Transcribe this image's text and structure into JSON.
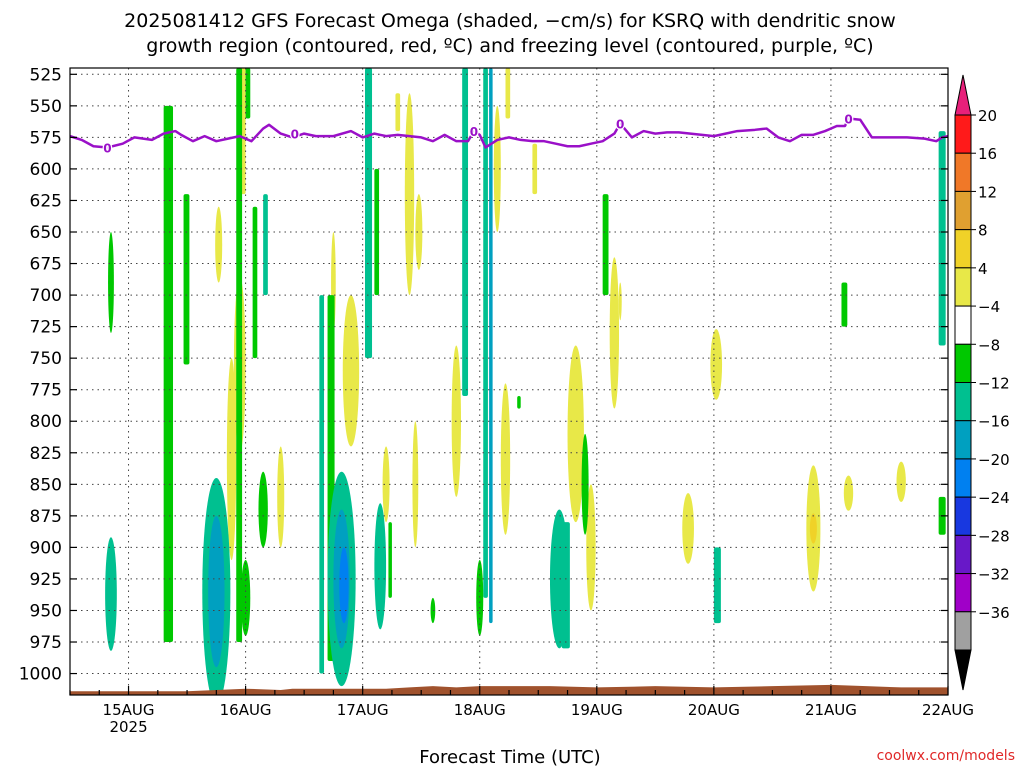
{
  "chart_data": {
    "type": "heatmap",
    "title_line1": "2025081412 GFS Forecast Omega (shaded, −cm/s) for KSRQ with dendritic snow",
    "title_line2": "growth region (contoured, red, ºC) and freezing level (contoured, purple, ºC)",
    "xlabel": "Forecast Time (UTC)",
    "ylabel": "",
    "watermark": "coolwx.com/models",
    "x_ticks": [
      {
        "day": 15,
        "label": "15AUG"
      },
      {
        "day": 16,
        "label": "16AUG"
      },
      {
        "day": 17,
        "label": "17AUG"
      },
      {
        "day": 18,
        "label": "18AUG"
      },
      {
        "day": 19,
        "label": "19AUG"
      },
      {
        "day": 20,
        "label": "20AUG"
      },
      {
        "day": 21,
        "label": "21AUG"
      },
      {
        "day": 22,
        "label": "22AUG"
      }
    ],
    "x_year_label": "2025",
    "xlim": [
      14.5,
      22.0
    ],
    "y_ticks": [
      525,
      550,
      575,
      600,
      625,
      650,
      675,
      700,
      725,
      750,
      775,
      800,
      825,
      850,
      875,
      900,
      925,
      950,
      975,
      1000
    ],
    "ylim": [
      520,
      1017
    ],
    "colorbar": {
      "labels": [
        "20",
        "16",
        "12",
        "8",
        "4",
        "−4",
        "−8",
        "−12",
        "−16",
        "−20",
        "−24",
        "−28",
        "−32",
        "−36"
      ],
      "colors": [
        "#ff1a1a",
        "#f07828",
        "#e0a030",
        "#f0d228",
        "#e8e848",
        "#ffffff",
        "#00c800",
        "#00c090",
        "#00a0c0",
        "#0080f0",
        "#1838e0",
        "#6818c8",
        "#a000c8",
        "#a0a0a0"
      ],
      "top_color": "#e8207a",
      "bottom_color": "#000000"
    },
    "freezing_level_label": "0",
    "freezing_level": [
      [
        14.5,
        574
      ],
      [
        14.6,
        577
      ],
      [
        14.7,
        582
      ],
      [
        14.82,
        583
      ],
      [
        14.95,
        580
      ],
      [
        15.05,
        575
      ],
      [
        15.2,
        577
      ],
      [
        15.3,
        572
      ],
      [
        15.4,
        570
      ],
      [
        15.45,
        573
      ],
      [
        15.55,
        578
      ],
      [
        15.65,
        574
      ],
      [
        15.75,
        578
      ],
      [
        15.85,
        576
      ],
      [
        15.95,
        574
      ],
      [
        16.05,
        578
      ],
      [
        16.15,
        568
      ],
      [
        16.2,
        565
      ],
      [
        16.3,
        572
      ],
      [
        16.4,
        575
      ],
      [
        16.5,
        572
      ],
      [
        16.6,
        574
      ],
      [
        16.75,
        574
      ],
      [
        16.9,
        570
      ],
      [
        17.0,
        575
      ],
      [
        17.1,
        572
      ],
      [
        17.2,
        574
      ],
      [
        17.3,
        573
      ],
      [
        17.5,
        575
      ],
      [
        17.6,
        578
      ],
      [
        17.7,
        573
      ],
      [
        17.8,
        578
      ],
      [
        17.9,
        578
      ],
      [
        17.95,
        570
      ],
      [
        18.0,
        573
      ],
      [
        18.05,
        583
      ],
      [
        18.15,
        577
      ],
      [
        18.25,
        575
      ],
      [
        18.35,
        577
      ],
      [
        18.45,
        578
      ],
      [
        18.55,
        578
      ],
      [
        18.65,
        580
      ],
      [
        18.75,
        582
      ],
      [
        18.85,
        582
      ],
      [
        18.95,
        580
      ],
      [
        19.05,
        578
      ],
      [
        19.15,
        572
      ],
      [
        19.2,
        564
      ],
      [
        19.3,
        575
      ],
      [
        19.4,
        570
      ],
      [
        19.5,
        572
      ],
      [
        19.6,
        571
      ],
      [
        19.7,
        571
      ],
      [
        19.8,
        572
      ],
      [
        19.9,
        573
      ],
      [
        20.0,
        574
      ],
      [
        20.1,
        572
      ],
      [
        20.2,
        570
      ],
      [
        20.35,
        569
      ],
      [
        20.45,
        568
      ],
      [
        20.55,
        575
      ],
      [
        20.65,
        578
      ],
      [
        20.75,
        573
      ],
      [
        20.85,
        573
      ],
      [
        20.95,
        570
      ],
      [
        21.05,
        566
      ],
      [
        21.12,
        566
      ],
      [
        21.15,
        560
      ],
      [
        21.25,
        561
      ],
      [
        21.35,
        575
      ],
      [
        21.5,
        575
      ],
      [
        21.65,
        575
      ],
      [
        21.8,
        576
      ],
      [
        21.9,
        578
      ],
      [
        21.95,
        575
      ],
      [
        22.0,
        574
      ]
    ],
    "omega_regions": [
      {
        "t": [
          15.3,
          15.38
        ],
        "p": [
          550,
          975
        ],
        "v": -6
      },
      {
        "t": [
          15.47,
          15.52
        ],
        "p": [
          620,
          755
        ],
        "v": -6
      },
      {
        "t": [
          15.92,
          15.97
        ],
        "p": [
          520,
          975
        ],
        "v": -6
      },
      {
        "t": [
          16.0,
          16.04
        ],
        "p": [
          520,
          560
        ],
        "v": -6
      },
      {
        "t": [
          16.06,
          16.1
        ],
        "p": [
          630,
          750
        ],
        "v": -6
      },
      {
        "t": [
          16.15,
          16.19
        ],
        "p": [
          620,
          700
        ],
        "v": -8
      },
      {
        "t": [
          16.63,
          16.67
        ],
        "p": [
          700,
          1000
        ],
        "v": -8
      },
      {
        "t": [
          16.7,
          16.76
        ],
        "p": [
          700,
          990
        ],
        "v": -6
      },
      {
        "t": [
          17.02,
          17.08
        ],
        "p": [
          520,
          750
        ],
        "v": -8
      },
      {
        "t": [
          17.1,
          17.14
        ],
        "p": [
          600,
          700
        ],
        "v": -6
      },
      {
        "t": [
          17.22,
          17.25
        ],
        "p": [
          880,
          940
        ],
        "v": -6
      },
      {
        "t": [
          17.85,
          17.9
        ],
        "p": [
          520,
          780
        ],
        "v": -8
      },
      {
        "t": [
          18.03,
          18.07
        ],
        "p": [
          520,
          940
        ],
        "v": -10
      },
      {
        "t": [
          18.08,
          18.11
        ],
        "p": [
          520,
          960
        ],
        "v": -13
      },
      {
        "t": [
          18.32,
          18.35
        ],
        "p": [
          780,
          790
        ],
        "v": -6
      },
      {
        "t": [
          18.7,
          18.77
        ],
        "p": [
          880,
          980
        ],
        "v": -8
      },
      {
        "t": [
          19.05,
          19.1
        ],
        "p": [
          620,
          700
        ],
        "v": -6
      },
      {
        "t": [
          20.0,
          20.06
        ],
        "p": [
          900,
          960
        ],
        "v": -8
      },
      {
        "t": [
          21.09,
          21.14
        ],
        "p": [
          690,
          725
        ],
        "v": -6
      },
      {
        "t": [
          21.92,
          21.98
        ],
        "p": [
          570,
          740
        ],
        "v": -8
      },
      {
        "t": [
          21.92,
          21.98
        ],
        "p": [
          860,
          890
        ],
        "v": -6
      }
    ],
    "omega_blobs": [
      {
        "t": 14.85,
        "p": 937,
        "rt": 0.05,
        "rp": 45,
        "v": -8
      },
      {
        "t": 14.85,
        "p": 690,
        "rt": 0.025,
        "rp": 40,
        "v": -6
      },
      {
        "t": 15.75,
        "p": 935,
        "rt": 0.12,
        "rp": 90,
        "v": -8
      },
      {
        "t": 15.75,
        "p": 935,
        "rt": 0.07,
        "rp": 60,
        "v": -13
      },
      {
        "t": 16.0,
        "p": 940,
        "rt": 0.04,
        "rp": 30,
        "v": -6
      },
      {
        "t": 16.15,
        "p": 870,
        "rt": 0.04,
        "rp": 30,
        "v": -6
      },
      {
        "t": 16.82,
        "p": 925,
        "rt": 0.12,
        "rp": 85,
        "v": -8
      },
      {
        "t": 16.82,
        "p": 925,
        "rt": 0.07,
        "rp": 55,
        "v": -13
      },
      {
        "t": 16.84,
        "p": 930,
        "rt": 0.04,
        "rp": 30,
        "v": -16
      },
      {
        "t": 17.15,
        "p": 915,
        "rt": 0.05,
        "rp": 50,
        "v": -8
      },
      {
        "t": 17.6,
        "p": 950,
        "rt": 0.02,
        "rp": 10,
        "v": -6
      },
      {
        "t": 18.0,
        "p": 940,
        "rt": 0.03,
        "rp": 30,
        "v": -6
      },
      {
        "t": 18.68,
        "p": 925,
        "rt": 0.08,
        "rp": 55,
        "v": -8
      },
      {
        "t": 18.9,
        "p": 850,
        "rt": 0.03,
        "rp": 40,
        "v": -6
      }
    ],
    "positive_regions": [
      {
        "t": [
          15.95,
          16.0
        ],
        "p": [
          520,
          620
        ],
        "v": 5
      },
      {
        "t": [
          17.28,
          17.32
        ],
        "p": [
          540,
          570
        ],
        "v": 5
      },
      {
        "t": [
          18.22,
          18.26
        ],
        "p": [
          520,
          560
        ],
        "v": 5
      },
      {
        "t": [
          18.45,
          18.49
        ],
        "p": [
          580,
          620
        ],
        "v": 5
      }
    ],
    "positive_blobs": [
      {
        "t": 15.77,
        "p": 660,
        "rt": 0.03,
        "rp": 30,
        "v": 5
      },
      {
        "t": 15.88,
        "p": 830,
        "rt": 0.04,
        "rp": 80,
        "v": 5
      },
      {
        "t": 15.95,
        "p": 755,
        "rt": 0.05,
        "rp": 70,
        "v": 5
      },
      {
        "t": 15.95,
        "p": 750,
        "rt": 0.025,
        "rp": 35,
        "v": 9
      },
      {
        "t": 16.3,
        "p": 860,
        "rt": 0.03,
        "rp": 40,
        "v": 5
      },
      {
        "t": 16.75,
        "p": 690,
        "rt": 0.02,
        "rp": 40,
        "v": 5
      },
      {
        "t": 16.9,
        "p": 760,
        "rt": 0.07,
        "rp": 60,
        "v": 5
      },
      {
        "t": 17.2,
        "p": 850,
        "rt": 0.03,
        "rp": 30,
        "v": 5
      },
      {
        "t": 17.4,
        "p": 620,
        "rt": 0.04,
        "rp": 80,
        "v": 5
      },
      {
        "t": 17.45,
        "p": 850,
        "rt": 0.025,
        "rp": 50,
        "v": 5
      },
      {
        "t": 17.48,
        "p": 650,
        "rt": 0.03,
        "rp": 30,
        "v": 5
      },
      {
        "t": 17.8,
        "p": 800,
        "rt": 0.04,
        "rp": 60,
        "v": 5
      },
      {
        "t": 18.15,
        "p": 600,
        "rt": 0.03,
        "rp": 50,
        "v": 5
      },
      {
        "t": 18.22,
        "p": 830,
        "rt": 0.04,
        "rp": 60,
        "v": 5
      },
      {
        "t": 18.82,
        "p": 810,
        "rt": 0.07,
        "rp": 70,
        "v": 5
      },
      {
        "t": 18.95,
        "p": 900,
        "rt": 0.04,
        "rp": 50,
        "v": 5
      },
      {
        "t": 19.15,
        "p": 730,
        "rt": 0.04,
        "rp": 60,
        "v": 5
      },
      {
        "t": 19.2,
        "p": 705,
        "rt": 0.01,
        "rp": 15,
        "v": 5
      },
      {
        "t": 19.78,
        "p": 885,
        "rt": 0.05,
        "rp": 28,
        "v": 5
      },
      {
        "t": 20.02,
        "p": 755,
        "rt": 0.05,
        "rp": 28,
        "v": 5
      },
      {
        "t": 20.85,
        "p": 885,
        "rt": 0.06,
        "rp": 50,
        "v": 5
      },
      {
        "t": 20.85,
        "p": 885,
        "rt": 0.03,
        "rp": 12,
        "v": 10
      },
      {
        "t": 21.15,
        "p": 857,
        "rt": 0.04,
        "rp": 14,
        "v": 5
      },
      {
        "t": 21.6,
        "p": 848,
        "rt": 0.04,
        "rp": 16,
        "v": 5
      },
      {
        "t": 21.95,
        "p": 655,
        "rt": 0.02,
        "rp": 20,
        "v": 5
      }
    ],
    "terrain_top_pressure": [
      [
        14.5,
        1014
      ],
      [
        15.5,
        1014
      ],
      [
        16.0,
        1012
      ],
      [
        16.3,
        1013
      ],
      [
        16.4,
        1012
      ],
      [
        16.6,
        1012
      ],
      [
        17.2,
        1012
      ],
      [
        17.4,
        1011
      ],
      [
        17.6,
        1010
      ],
      [
        17.8,
        1011
      ],
      [
        18.0,
        1010
      ],
      [
        18.2,
        1010
      ],
      [
        18.6,
        1010
      ],
      [
        19.0,
        1011
      ],
      [
        19.5,
        1010
      ],
      [
        20.0,
        1011
      ],
      [
        20.5,
        1010
      ],
      [
        21.0,
        1009
      ],
      [
        21.3,
        1010
      ],
      [
        21.6,
        1011
      ],
      [
        22.0,
        1011
      ]
    ],
    "terrain_color": "#a0522d",
    "freezing_level_color": "#9a10c8",
    "grid": true
  }
}
